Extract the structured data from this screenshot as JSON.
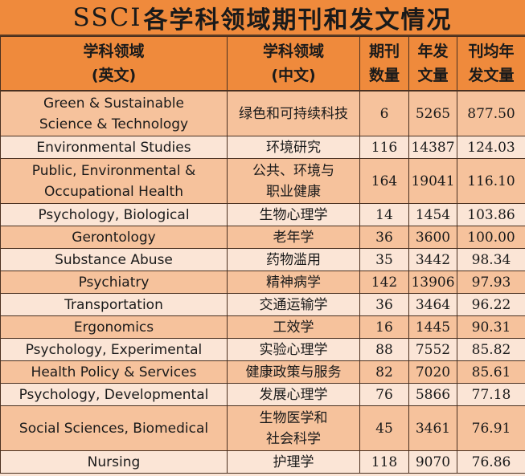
{
  "title": {
    "latin": "SSCI",
    "chinese": "各学科领域期刊和发文情况"
  },
  "headers": [
    {
      "line1": "学科领域",
      "line2": "(英文)"
    },
    {
      "line1": "学科领域",
      "line2": "(中文)"
    },
    {
      "line1": "期刊",
      "line2": "数量"
    },
    {
      "line1": "年发",
      "line2": "文量"
    },
    {
      "line1": "刊均年",
      "line2": "发文量"
    }
  ],
  "rows": [
    {
      "en1": "Green & Sustainable",
      "en2": "Science & Technology",
      "zh1": "绿色和可持续科技",
      "zh2": "",
      "journals": "6",
      "articles": "5265",
      "avg": "877.50"
    },
    {
      "en1": "Environmental Studies",
      "en2": "",
      "zh1": "环境研究",
      "zh2": "",
      "journals": "116",
      "articles": "14387",
      "avg": "124.03"
    },
    {
      "en1": "Public, Environmental &",
      "en2": "Occupational Health",
      "zh1": "公共、环境与",
      "zh2": "职业健康",
      "journals": "164",
      "articles": "19041",
      "avg": "116.10"
    },
    {
      "en1": "Psychology, Biological",
      "en2": "",
      "zh1": "生物心理学",
      "zh2": "",
      "journals": "14",
      "articles": "1454",
      "avg": "103.86"
    },
    {
      "en1": "Gerontology",
      "en2": "",
      "zh1": "老年学",
      "zh2": "",
      "journals": "36",
      "articles": "3600",
      "avg": "100.00"
    },
    {
      "en1": "Substance Abuse",
      "en2": "",
      "zh1": "药物滥用",
      "zh2": "",
      "journals": "35",
      "articles": "3442",
      "avg": "98.34"
    },
    {
      "en1": "Psychiatry",
      "en2": "",
      "zh1": "精神病学",
      "zh2": "",
      "journals": "142",
      "articles": "13906",
      "avg": "97.93"
    },
    {
      "en1": "Transportation",
      "en2": "",
      "zh1": "交通运输学",
      "zh2": "",
      "journals": "36",
      "articles": "3464",
      "avg": "96.22"
    },
    {
      "en1": "Ergonomics",
      "en2": "",
      "zh1": "工效学",
      "zh2": "",
      "journals": "16",
      "articles": "1445",
      "avg": "90.31"
    },
    {
      "en1": "Psychology, Experimental",
      "en2": "",
      "zh1": "实验心理学",
      "zh2": "",
      "journals": "88",
      "articles": "7552",
      "avg": "85.82"
    },
    {
      "en1": "Health Policy & Services",
      "en2": "",
      "zh1": "健康政策与服务",
      "zh2": "",
      "journals": "82",
      "articles": "7020",
      "avg": "85.61"
    },
    {
      "en1": "Psychology, Developmental",
      "en2": "",
      "zh1": "发展心理学",
      "zh2": "",
      "journals": "76",
      "articles": "5866",
      "avg": "77.18"
    },
    {
      "en1": "Social Sciences, Biomedical",
      "en2": "",
      "zh1": "生物医学和",
      "zh2": "社会科学",
      "journals": "45",
      "articles": "3461",
      "avg": "76.91"
    },
    {
      "en1": "Nursing",
      "en2": "",
      "zh1": "护理学",
      "zh2": "",
      "journals": "118",
      "articles": "9070",
      "avg": "76.86"
    }
  ],
  "colors": {
    "header": "#ef8a3c",
    "row_light": "#fbe5d6",
    "row_dark": "#f6c29c",
    "border": "#4a3020"
  }
}
